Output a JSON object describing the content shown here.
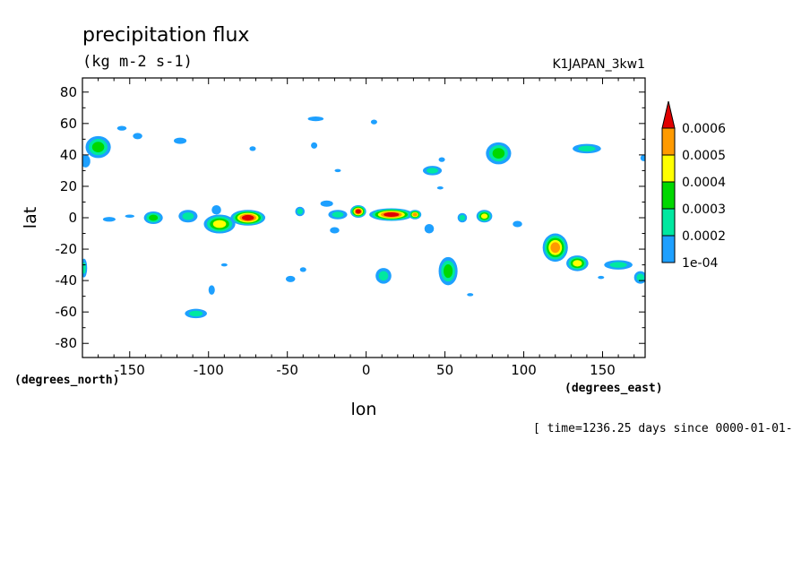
{
  "title": "precipitation flux",
  "units": "(kg m-2 s-1)",
  "run_label": "K1JAPAN_3kw1",
  "time_label": "[ time=1236.25 days since 0000-01-01-",
  "chart_data": {
    "type": "contour",
    "xlabel": "lon",
    "ylabel": "lat",
    "x_unit_label": "(degrees_east)",
    "y_unit_label": "(degrees_north)",
    "xlim": [
      -180,
      177
    ],
    "ylim": [
      -89,
      89
    ],
    "xticks": [
      -150,
      -100,
      -50,
      0,
      50,
      100,
      150
    ],
    "yticks": [
      80,
      60,
      40,
      20,
      0,
      -20,
      -40,
      -60,
      -80
    ],
    "xtick_labels": [
      "-150",
      "-100",
      "-50",
      "0",
      "50",
      "100",
      "150"
    ],
    "ytick_labels": [
      "80",
      "60",
      "40",
      "20",
      "0",
      "-20",
      "-40",
      "-60",
      "-80"
    ],
    "grid": false,
    "contour_levels": [
      0.0001,
      0.0002,
      0.0003,
      0.0004,
      0.0005,
      0.0006
    ],
    "level_labels": [
      "1e-04",
      "0.0002",
      "0.0003",
      "0.0004",
      "0.0005",
      "0.0006"
    ],
    "colors": [
      "#1ea0ff",
      "#00e8a0",
      "#00d800",
      "#ffff00",
      "#ff9a00",
      "#e00000"
    ],
    "features": [
      {
        "lon": -170,
        "lat": 45,
        "dlon": 8,
        "dlat": 7,
        "level": 2
      },
      {
        "lon": -178,
        "lat": 36,
        "dlon": 3,
        "dlat": 4,
        "level": 0
      },
      {
        "lon": -155,
        "lat": 57,
        "dlon": 3,
        "dlat": 1.5,
        "level": 0
      },
      {
        "lon": -145,
        "lat": 52,
        "dlon": 3,
        "dlat": 2,
        "level": 0
      },
      {
        "lon": -118,
        "lat": 49,
        "dlon": 4,
        "dlat": 2,
        "level": 0
      },
      {
        "lon": -72,
        "lat": 44,
        "dlon": 2,
        "dlat": 1.5,
        "level": 0
      },
      {
        "lon": -32,
        "lat": 63,
        "dlon": 5,
        "dlat": 1.5,
        "level": 0
      },
      {
        "lon": 5,
        "lat": 61,
        "dlon": 2,
        "dlat": 1.5,
        "level": 0
      },
      {
        "lon": -33,
        "lat": 46,
        "dlon": 2,
        "dlat": 2,
        "level": 0
      },
      {
        "lon": -18,
        "lat": 30,
        "dlon": 2,
        "dlat": 1,
        "level": 0
      },
      {
        "lon": 42,
        "lat": 30,
        "dlon": 6,
        "dlat": 3,
        "level": 1
      },
      {
        "lon": 48,
        "lat": 37,
        "dlon": 2,
        "dlat": 1.5,
        "level": 0
      },
      {
        "lon": 47,
        "lat": 19,
        "dlon": 2,
        "dlat": 1,
        "level": 0
      },
      {
        "lon": 84,
        "lat": 41,
        "dlon": 8,
        "dlat": 7,
        "level": 2
      },
      {
        "lon": 140,
        "lat": 44,
        "dlon": 9,
        "dlat": 3,
        "level": 1
      },
      {
        "lon": 176,
        "lat": 38,
        "dlon": 2,
        "dlat": 2,
        "level": 0
      },
      {
        "lon": -163,
        "lat": -1,
        "dlon": 4,
        "dlat": 1.5,
        "level": 0
      },
      {
        "lon": -150,
        "lat": 1,
        "dlon": 3,
        "dlat": 1,
        "level": 0
      },
      {
        "lon": -135,
        "lat": 0,
        "dlon": 6,
        "dlat": 4,
        "level": 2
      },
      {
        "lon": -113,
        "lat": 1,
        "dlon": 6,
        "dlat": 4,
        "level": 1
      },
      {
        "lon": -93,
        "lat": -4,
        "dlon": 10,
        "dlat": 6,
        "level": 3
      },
      {
        "lon": -75,
        "lat": 0,
        "dlon": 11,
        "dlat": 5,
        "level": 5
      },
      {
        "lon": -95,
        "lat": 5,
        "dlon": 3,
        "dlat": 3,
        "level": 0
      },
      {
        "lon": -42,
        "lat": 4,
        "dlon": 3,
        "dlat": 3,
        "level": 1
      },
      {
        "lon": -25,
        "lat": 9,
        "dlon": 4,
        "dlat": 2,
        "level": 0
      },
      {
        "lon": -18,
        "lat": 2,
        "dlon": 6,
        "dlat": 3,
        "level": 1
      },
      {
        "lon": -20,
        "lat": -8,
        "dlon": 3,
        "dlat": 2,
        "level": 0
      },
      {
        "lon": -5,
        "lat": 4,
        "dlon": 5,
        "dlat": 4,
        "level": 5
      },
      {
        "lon": 16,
        "lat": 2,
        "dlon": 14,
        "dlat": 4,
        "level": 5
      },
      {
        "lon": 31,
        "lat": 2,
        "dlon": 4,
        "dlat": 3,
        "level": 4
      },
      {
        "lon": 40,
        "lat": -7,
        "dlon": 3,
        "dlat": 3,
        "level": 0
      },
      {
        "lon": 61,
        "lat": 0,
        "dlon": 3,
        "dlat": 3,
        "level": 1
      },
      {
        "lon": 75,
        "lat": 1,
        "dlon": 5,
        "dlat": 4,
        "level": 3
      },
      {
        "lon": 96,
        "lat": -4,
        "dlon": 3,
        "dlat": 2,
        "level": 0
      },
      {
        "lon": 120,
        "lat": -19,
        "dlon": 8,
        "dlat": 9,
        "level": 4
      },
      {
        "lon": 134,
        "lat": -29,
        "dlon": 7,
        "dlat": 5,
        "level": 3
      },
      {
        "lon": 160,
        "lat": -30,
        "dlon": 9,
        "dlat": 3,
        "level": 1
      },
      {
        "lon": 174,
        "lat": -38,
        "dlon": 4,
        "dlat": 4,
        "level": 1
      },
      {
        "lon": -179,
        "lat": -32,
        "dlon": 2,
        "dlat": 6,
        "level": 1
      },
      {
        "lon": -90,
        "lat": -30,
        "dlon": 2,
        "dlat": 1,
        "level": 0
      },
      {
        "lon": -48,
        "lat": -39,
        "dlon": 3,
        "dlat": 2,
        "level": 0
      },
      {
        "lon": -40,
        "lat": -33,
        "dlon": 2,
        "dlat": 1.5,
        "level": 0
      },
      {
        "lon": -98,
        "lat": -46,
        "dlon": 2,
        "dlat": 3,
        "level": 0
      },
      {
        "lon": -108,
        "lat": -61,
        "dlon": 7,
        "dlat": 3,
        "level": 1
      },
      {
        "lon": 11,
        "lat": -37,
        "dlon": 5,
        "dlat": 5,
        "level": 1
      },
      {
        "lon": 52,
        "lat": -34,
        "dlon": 6,
        "dlat": 9,
        "level": 2
      },
      {
        "lon": 66,
        "lat": -49,
        "dlon": 2,
        "dlat": 1,
        "level": 0
      },
      {
        "lon": 149,
        "lat": -38,
        "dlon": 2,
        "dlat": 1,
        "level": 0
      }
    ]
  }
}
